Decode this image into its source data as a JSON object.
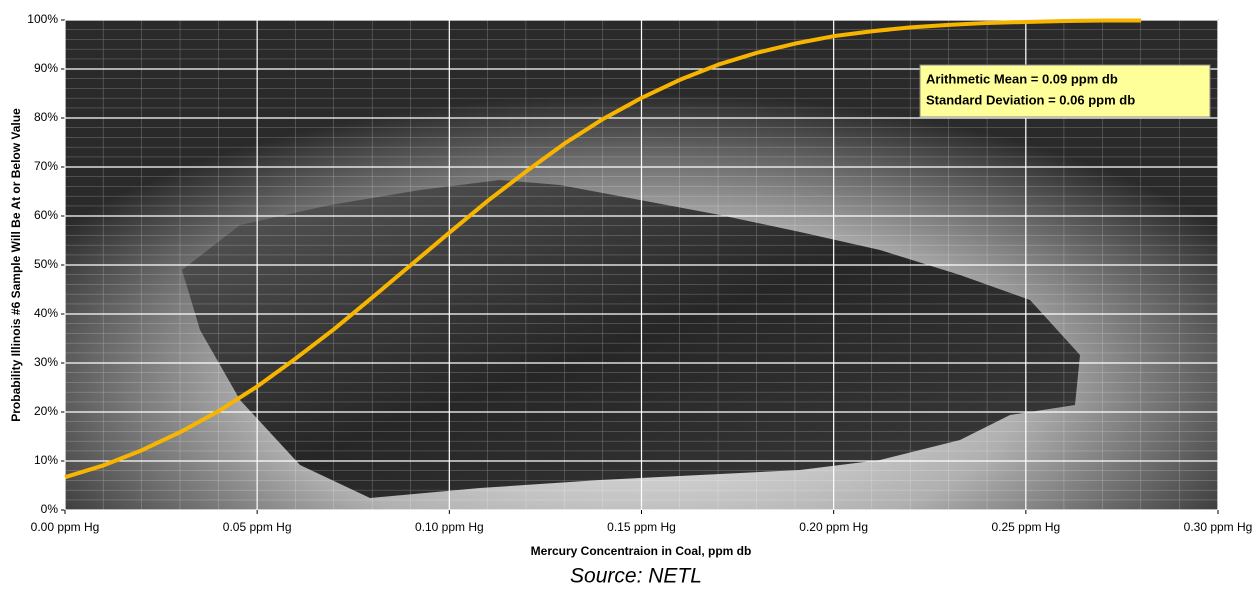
{
  "chart_data": {
    "type": "line",
    "x_label": "Mercury Concentraion in Coal, ppm db",
    "y_label": "Probability Illinois #6 Sample Will Be At or Below Value",
    "source": "Source: NETL",
    "annotations": [
      "Arithmetic Mean = 0.09 ppm db",
      "Standard Deviation = 0.06 ppm db"
    ],
    "x": [
      0,
      0.01,
      0.02,
      0.03,
      0.04,
      0.05,
      0.06,
      0.07,
      0.08,
      0.09,
      0.1,
      0.11,
      0.12,
      0.13,
      0.14,
      0.15,
      0.16,
      0.17,
      0.18,
      0.19,
      0.2,
      0.21,
      0.22,
      0.23,
      0.24,
      0.25,
      0.26,
      0.27,
      0.28
    ],
    "series": [
      {
        "color": "#f7b500",
        "values": [
          6.7,
          9.1,
          12.2,
          15.9,
          20.2,
          25.2,
          30.9,
          36.9,
          43.4,
          50,
          56.6,
          63.1,
          69.1,
          74.8,
          79.8,
          84.1,
          87.8,
          90.9,
          93.3,
          95.2,
          96.7,
          97.7,
          98.5,
          99.0,
          99.4,
          99.6,
          99.8,
          99.9,
          99.9
        ]
      }
    ],
    "xlim": [
      0,
      0.3
    ],
    "ylim": [
      0,
      100
    ],
    "xticks": [
      {
        "value": 0,
        "label": "0.00 ppm Hg"
      },
      {
        "value": 0.05,
        "label": "0.05 ppm Hg"
      },
      {
        "value": 0.1,
        "label": "0.10 ppm Hg"
      },
      {
        "value": 0.15,
        "label": "0.15 ppm Hg"
      },
      {
        "value": 0.2,
        "label": "0.20 ppm Hg"
      },
      {
        "value": 0.25,
        "label": "0.25 ppm Hg"
      },
      {
        "value": 0.3,
        "label": "0.30 ppm Hg"
      }
    ],
    "yticks": [
      {
        "value": 0,
        "label": "0%"
      },
      {
        "value": 10,
        "label": "10%"
      },
      {
        "value": 20,
        "label": "20%"
      },
      {
        "value": 30,
        "label": "30%"
      },
      {
        "value": 40,
        "label": "40%"
      },
      {
        "value": 50,
        "label": "50%"
      },
      {
        "value": 60,
        "label": "60%"
      },
      {
        "value": 70,
        "label": "70%"
      },
      {
        "value": 80,
        "label": "80%"
      },
      {
        "value": 90,
        "label": "90%"
      },
      {
        "value": 100,
        "label": "100%"
      }
    ],
    "grid": true
  }
}
